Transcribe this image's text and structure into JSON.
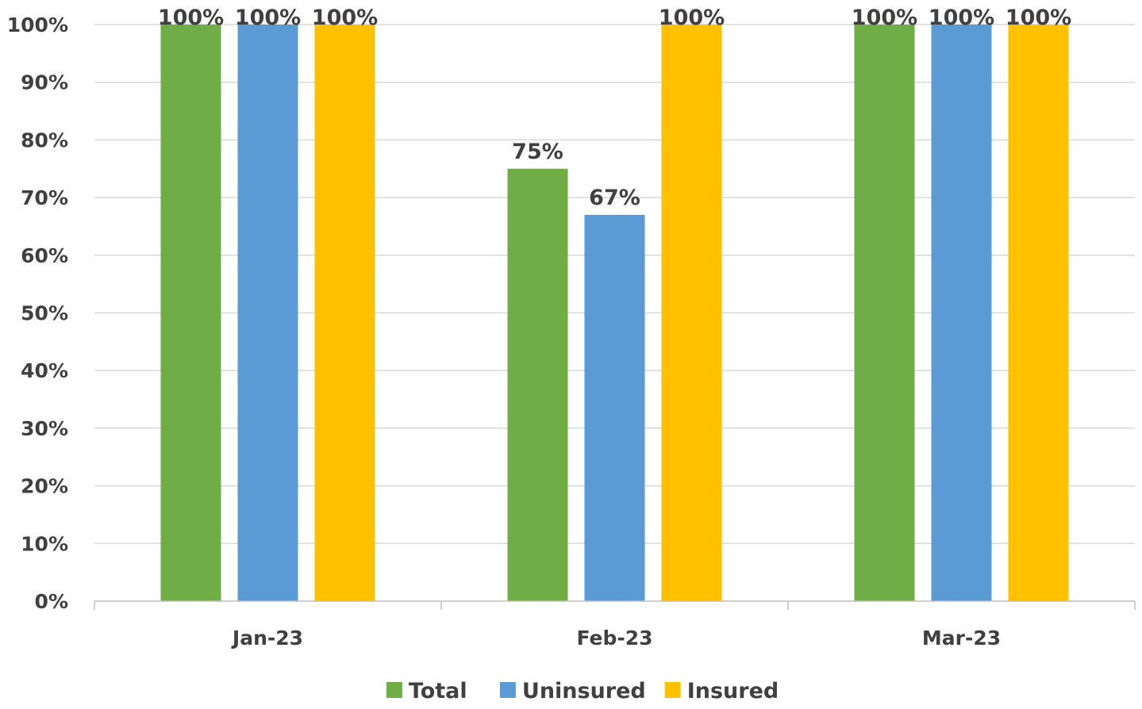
{
  "chart_data": {
    "type": "bar",
    "categories": [
      "Jan-23",
      "Feb-23",
      "Mar-23"
    ],
    "series": [
      {
        "name": "Total",
        "values": [
          100,
          75,
          100
        ],
        "labels": [
          "100%",
          "75%",
          "100%"
        ],
        "color": "#70AD47"
      },
      {
        "name": "Uninsured",
        "values": [
          100,
          67,
          100
        ],
        "labels": [
          "100%",
          "67%",
          "100%"
        ],
        "color": "#5B9BD5"
      },
      {
        "name": "Insured",
        "values": [
          100,
          100,
          100
        ],
        "labels": [
          "100%",
          "100%",
          "100%"
        ],
        "color": "#FFC000"
      }
    ],
    "ylim": [
      0,
      100
    ],
    "y_ticks": [
      0,
      10,
      20,
      30,
      40,
      50,
      60,
      70,
      80,
      90,
      100
    ],
    "y_tick_labels": [
      "0%",
      "10%",
      "20%",
      "30%",
      "40%",
      "50%",
      "60%",
      "70%",
      "80%",
      "90%",
      "100%"
    ],
    "grid": true,
    "legend_position": "bottom",
    "title": "",
    "xlabel": "",
    "ylabel": ""
  },
  "colors": {
    "gridline": "#D9D9D9",
    "axis": "#BFBFBF",
    "text": "#404040"
  }
}
